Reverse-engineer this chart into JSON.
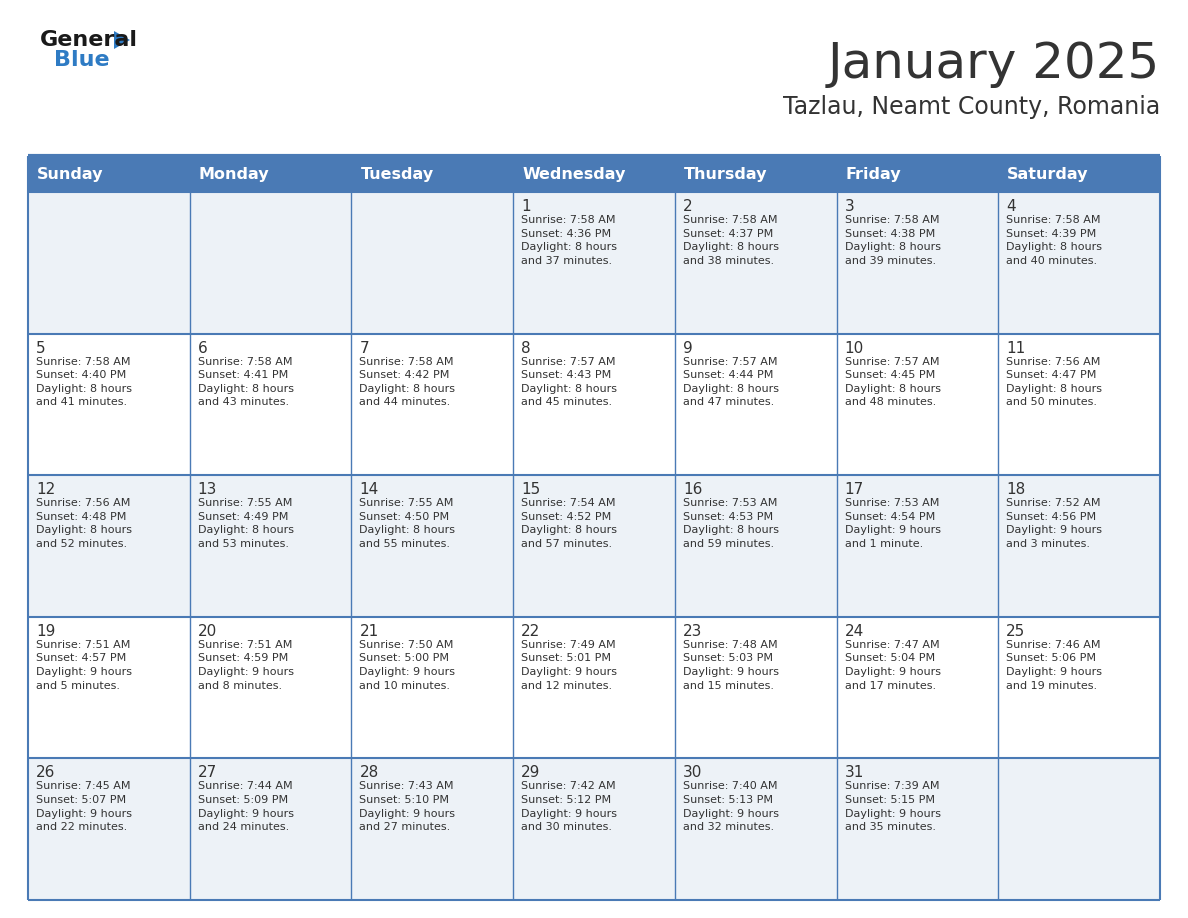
{
  "title": "January 2025",
  "subtitle": "Tazlau, Neamt County, Romania",
  "header_bg": "#4a7ab5",
  "header_text_color": "#ffffff",
  "text_color": "#333333",
  "line_color": "#4a7ab5",
  "border_color": "#4a7ab5",
  "days_of_week": [
    "Sunday",
    "Monday",
    "Tuesday",
    "Wednesday",
    "Thursday",
    "Friday",
    "Saturday"
  ],
  "weeks": [
    [
      {
        "day": "",
        "info": ""
      },
      {
        "day": "",
        "info": ""
      },
      {
        "day": "",
        "info": ""
      },
      {
        "day": "1",
        "info": "Sunrise: 7:58 AM\nSunset: 4:36 PM\nDaylight: 8 hours\nand 37 minutes."
      },
      {
        "day": "2",
        "info": "Sunrise: 7:58 AM\nSunset: 4:37 PM\nDaylight: 8 hours\nand 38 minutes."
      },
      {
        "day": "3",
        "info": "Sunrise: 7:58 AM\nSunset: 4:38 PM\nDaylight: 8 hours\nand 39 minutes."
      },
      {
        "day": "4",
        "info": "Sunrise: 7:58 AM\nSunset: 4:39 PM\nDaylight: 8 hours\nand 40 minutes."
      }
    ],
    [
      {
        "day": "5",
        "info": "Sunrise: 7:58 AM\nSunset: 4:40 PM\nDaylight: 8 hours\nand 41 minutes."
      },
      {
        "day": "6",
        "info": "Sunrise: 7:58 AM\nSunset: 4:41 PM\nDaylight: 8 hours\nand 43 minutes."
      },
      {
        "day": "7",
        "info": "Sunrise: 7:58 AM\nSunset: 4:42 PM\nDaylight: 8 hours\nand 44 minutes."
      },
      {
        "day": "8",
        "info": "Sunrise: 7:57 AM\nSunset: 4:43 PM\nDaylight: 8 hours\nand 45 minutes."
      },
      {
        "day": "9",
        "info": "Sunrise: 7:57 AM\nSunset: 4:44 PM\nDaylight: 8 hours\nand 47 minutes."
      },
      {
        "day": "10",
        "info": "Sunrise: 7:57 AM\nSunset: 4:45 PM\nDaylight: 8 hours\nand 48 minutes."
      },
      {
        "day": "11",
        "info": "Sunrise: 7:56 AM\nSunset: 4:47 PM\nDaylight: 8 hours\nand 50 minutes."
      }
    ],
    [
      {
        "day": "12",
        "info": "Sunrise: 7:56 AM\nSunset: 4:48 PM\nDaylight: 8 hours\nand 52 minutes."
      },
      {
        "day": "13",
        "info": "Sunrise: 7:55 AM\nSunset: 4:49 PM\nDaylight: 8 hours\nand 53 minutes."
      },
      {
        "day": "14",
        "info": "Sunrise: 7:55 AM\nSunset: 4:50 PM\nDaylight: 8 hours\nand 55 minutes."
      },
      {
        "day": "15",
        "info": "Sunrise: 7:54 AM\nSunset: 4:52 PM\nDaylight: 8 hours\nand 57 minutes."
      },
      {
        "day": "16",
        "info": "Sunrise: 7:53 AM\nSunset: 4:53 PM\nDaylight: 8 hours\nand 59 minutes."
      },
      {
        "day": "17",
        "info": "Sunrise: 7:53 AM\nSunset: 4:54 PM\nDaylight: 9 hours\nand 1 minute."
      },
      {
        "day": "18",
        "info": "Sunrise: 7:52 AM\nSunset: 4:56 PM\nDaylight: 9 hours\nand 3 minutes."
      }
    ],
    [
      {
        "day": "19",
        "info": "Sunrise: 7:51 AM\nSunset: 4:57 PM\nDaylight: 9 hours\nand 5 minutes."
      },
      {
        "day": "20",
        "info": "Sunrise: 7:51 AM\nSunset: 4:59 PM\nDaylight: 9 hours\nand 8 minutes."
      },
      {
        "day": "21",
        "info": "Sunrise: 7:50 AM\nSunset: 5:00 PM\nDaylight: 9 hours\nand 10 minutes."
      },
      {
        "day": "22",
        "info": "Sunrise: 7:49 AM\nSunset: 5:01 PM\nDaylight: 9 hours\nand 12 minutes."
      },
      {
        "day": "23",
        "info": "Sunrise: 7:48 AM\nSunset: 5:03 PM\nDaylight: 9 hours\nand 15 minutes."
      },
      {
        "day": "24",
        "info": "Sunrise: 7:47 AM\nSunset: 5:04 PM\nDaylight: 9 hours\nand 17 minutes."
      },
      {
        "day": "25",
        "info": "Sunrise: 7:46 AM\nSunset: 5:06 PM\nDaylight: 9 hours\nand 19 minutes."
      }
    ],
    [
      {
        "day": "26",
        "info": "Sunrise: 7:45 AM\nSunset: 5:07 PM\nDaylight: 9 hours\nand 22 minutes."
      },
      {
        "day": "27",
        "info": "Sunrise: 7:44 AM\nSunset: 5:09 PM\nDaylight: 9 hours\nand 24 minutes."
      },
      {
        "day": "28",
        "info": "Sunrise: 7:43 AM\nSunset: 5:10 PM\nDaylight: 9 hours\nand 27 minutes."
      },
      {
        "day": "29",
        "info": "Sunrise: 7:42 AM\nSunset: 5:12 PM\nDaylight: 9 hours\nand 30 minutes."
      },
      {
        "day": "30",
        "info": "Sunrise: 7:40 AM\nSunset: 5:13 PM\nDaylight: 9 hours\nand 32 minutes."
      },
      {
        "day": "31",
        "info": "Sunrise: 7:39 AM\nSunset: 5:15 PM\nDaylight: 9 hours\nand 35 minutes."
      },
      {
        "day": "",
        "info": ""
      }
    ]
  ]
}
